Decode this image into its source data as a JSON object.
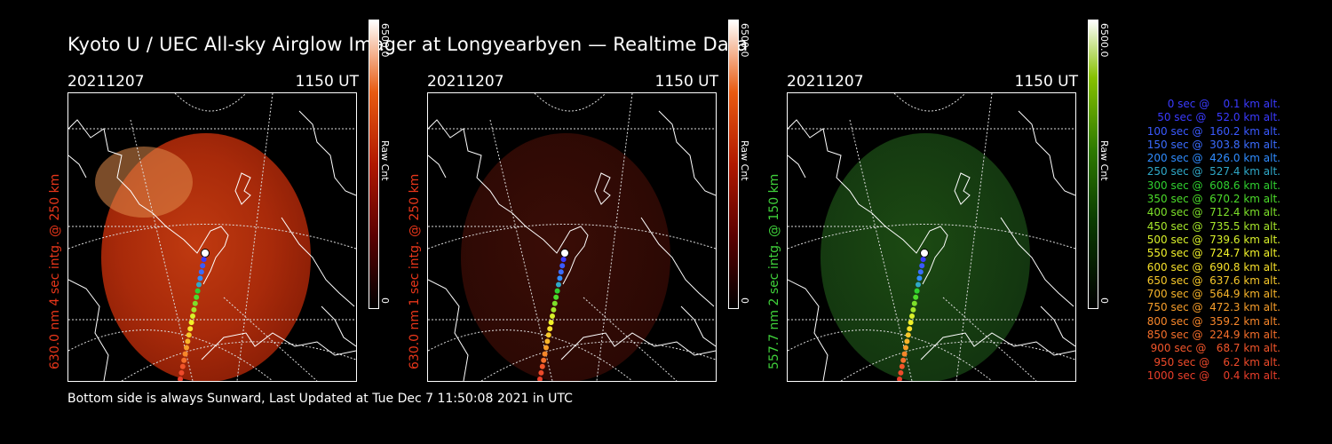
{
  "header": {
    "title": "Kyoto U / UEC All-sky Airglow Imager at Longyearbyen — Realtime Data"
  },
  "footer": {
    "text": "Bottom side is always Sunward, Last Updated at Tue Dec  7 11:50:08 2021 in UTC"
  },
  "panels": [
    {
      "date": "20211207",
      "time": "1150 UT",
      "ylabel": "630.0 nm 4 sec intg. @ 250 km",
      "label_color": "#e8361a",
      "cbar_max": "6500.0",
      "cbar_unit": "Raw Cnt",
      "cbar_min": "0",
      "cmap": "red",
      "intensity": 1.0
    },
    {
      "date": "20211207",
      "time": "1150 UT",
      "ylabel": "630.0 nm 1 sec intg. @ 250 km",
      "label_color": "#e8361a",
      "cbar_max": "6500.0",
      "cbar_unit": "Raw Cnt",
      "cbar_min": "0",
      "cmap": "red",
      "intensity": 0.3
    },
    {
      "date": "20211207",
      "time": "1150 UT",
      "ylabel": "557.7 nm 2 sec intg. @ 150 km",
      "label_color": "#3fd13a",
      "cbar_max": "6500.0",
      "cbar_unit": "Raw Cnt",
      "cbar_min": "0",
      "cmap": "green",
      "intensity": 0.3
    }
  ],
  "legend": [
    {
      "sec": "0",
      "alt": "0.1",
      "color": "#3a3aff"
    },
    {
      "sec": "50",
      "alt": "52.0",
      "color": "#3a3aff"
    },
    {
      "sec": "100",
      "alt": "160.2",
      "color": "#3a5aff"
    },
    {
      "sec": "150",
      "alt": "303.8",
      "color": "#3a6cff"
    },
    {
      "sec": "200",
      "alt": "426.0",
      "color": "#2f8cff"
    },
    {
      "sec": "250",
      "alt": "527.4",
      "color": "#2fa8c8"
    },
    {
      "sec": "300",
      "alt": "608.6",
      "color": "#2fd02f"
    },
    {
      "sec": "350",
      "alt": "670.2",
      "color": "#4cdc2a"
    },
    {
      "sec": "400",
      "alt": "712.4",
      "color": "#7de02a"
    },
    {
      "sec": "450",
      "alt": "735.5",
      "color": "#a6e62a"
    },
    {
      "sec": "500",
      "alt": "739.6",
      "color": "#d8f02a"
    },
    {
      "sec": "550",
      "alt": "724.7",
      "color": "#f2f22a"
    },
    {
      "sec": "600",
      "alt": "690.8",
      "color": "#f7e02a"
    },
    {
      "sec": "650",
      "alt": "637.6",
      "color": "#f7c82a"
    },
    {
      "sec": "700",
      "alt": "564.9",
      "color": "#f7b42a"
    },
    {
      "sec": "750",
      "alt": "472.3",
      "color": "#f79e2a"
    },
    {
      "sec": "800",
      "alt": "359.2",
      "color": "#f7862a"
    },
    {
      "sec": "850",
      "alt": "224.9",
      "color": "#f56e2a"
    },
    {
      "sec": "900",
      "alt": "68.7",
      "color": "#f2552a"
    },
    {
      "sec": "950",
      "alt": "6.2",
      "color": "#ee4a2a"
    },
    {
      "sec": "1000",
      "alt": "0.4",
      "color": "#ea3e2a"
    }
  ]
}
